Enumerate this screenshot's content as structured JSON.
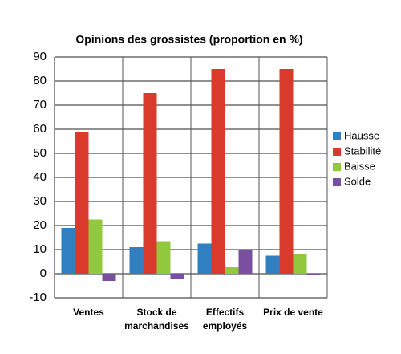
{
  "chart_data": {
    "type": "bar",
    "title": "Opinions des grossistes (proportion en %)",
    "categories": [
      "Ventes",
      "Stock de marchandises",
      "Effectifs employés",
      "Prix de vente"
    ],
    "series": [
      {
        "name": "Hausse",
        "color": "#2f7fc1",
        "values": [
          19,
          11,
          12.5,
          7.5
        ]
      },
      {
        "name": "Stabilité",
        "color": "#d93a2b",
        "values": [
          59,
          75,
          85,
          85
        ]
      },
      {
        "name": "Baisse",
        "color": "#92c83e",
        "values": [
          22.5,
          13.5,
          3,
          8
        ]
      },
      {
        "name": "Solde",
        "color": "#7a4fa0",
        "values": [
          -3,
          -2,
          10,
          -0.5
        ]
      }
    ],
    "ylim": [
      -10,
      90
    ],
    "yticks": [
      -10,
      0,
      10,
      20,
      30,
      40,
      50,
      60,
      70,
      80,
      90
    ],
    "grid": true,
    "legend": "right"
  }
}
